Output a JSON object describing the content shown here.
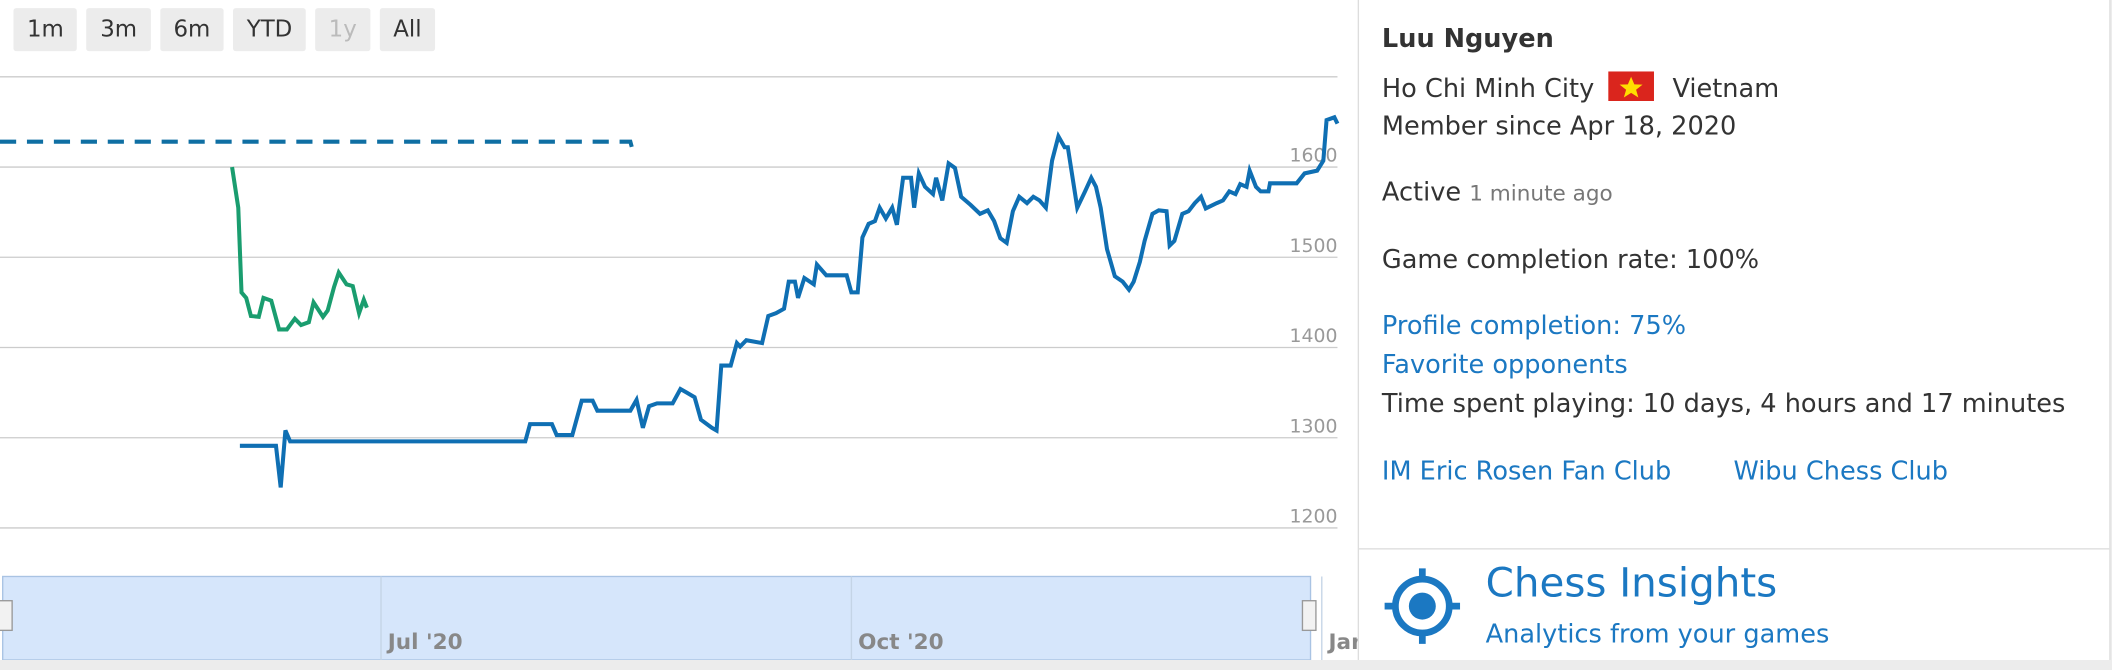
{
  "range_buttons": [
    "1m",
    "3m",
    "6m",
    "YTD",
    "1y",
    "All"
  ],
  "chart_data": {
    "type": "line",
    "xlim": [
      4.57,
      13.1
    ],
    "xticks": [
      {
        "value": 7,
        "label": "Jul '20"
      },
      {
        "value": 10,
        "label": "Oct '20"
      },
      {
        "value": 13,
        "label": "Jan"
      }
    ],
    "ylim": [
      1200,
      1700
    ],
    "yticks": [
      1200,
      1300,
      1400,
      1500,
      1600
    ],
    "grid": true,
    "series": [
      {
        "color": "#0f6fb3",
        "style": "solid",
        "x": [
          6.1,
          6.33,
          6.36,
          6.39,
          6.42,
          7.92,
          7.95,
          8.09,
          8.12,
          8.22,
          8.28,
          8.35,
          8.38,
          8.59,
          8.63,
          8.67,
          8.71,
          8.76,
          8.86,
          8.91,
          8.95,
          9.0,
          9.04,
          9.11,
          9.14,
          9.17,
          9.23,
          9.27,
          9.29,
          9.33,
          9.43,
          9.47,
          9.52,
          9.57,
          9.6,
          9.64,
          9.66,
          9.7,
          9.76,
          9.78,
          9.84,
          9.97,
          10.0,
          10.04,
          10.07,
          10.11,
          10.15,
          10.18,
          10.22,
          10.26,
          10.29,
          10.33,
          10.38,
          10.4,
          10.43,
          10.47,
          10.52,
          10.54,
          10.58,
          10.62,
          10.66,
          10.7,
          10.76,
          10.82,
          10.87,
          10.91,
          10.95,
          10.99,
          11.03,
          11.07,
          11.12,
          11.16,
          11.2,
          11.24,
          11.28,
          11.32,
          11.36,
          11.38,
          11.44,
          11.49,
          11.53,
          11.56,
          11.59,
          11.63,
          11.68,
          11.73,
          11.77,
          11.8,
          11.84,
          11.87,
          11.92,
          11.96,
          12.01,
          12.03,
          12.06,
          12.11,
          12.15,
          12.19,
          12.23,
          12.26,
          12.33,
          12.37,
          12.41,
          12.45,
          12.48,
          12.52,
          12.54,
          12.58,
          12.61,
          12.66,
          12.67,
          12.84,
          12.89,
          12.97,
          13.01,
          13.03,
          13.08,
          13.1
        ],
        "values": [
          1291,
          1291,
          1245,
          1308,
          1296,
          1296,
          1315,
          1315,
          1303,
          1303,
          1341,
          1341,
          1330,
          1330,
          1342,
          1311,
          1335,
          1338,
          1338,
          1354,
          1350,
          1345,
          1320,
          1311,
          1308,
          1380,
          1380,
          1405,
          1401,
          1408,
          1405,
          1435,
          1438,
          1443,
          1473,
          1473,
          1455,
          1477,
          1470,
          1492,
          1480,
          1480,
          1461,
          1461,
          1522,
          1537,
          1540,
          1555,
          1543,
          1555,
          1536,
          1588,
          1588,
          1555,
          1593,
          1578,
          1570,
          1588,
          1563,
          1604,
          1599,
          1567,
          1558,
          1548,
          1552,
          1540,
          1521,
          1516,
          1551,
          1567,
          1560,
          1567,
          1563,
          1555,
          1607,
          1634,
          1622,
          1622,
          1555,
          1573,
          1588,
          1578,
          1555,
          1509,
          1479,
          1473,
          1464,
          1473,
          1495,
          1518,
          1548,
          1552,
          1551,
          1513,
          1518,
          1548,
          1551,
          1560,
          1567,
          1554,
          1560,
          1563,
          1573,
          1570,
          1581,
          1578,
          1596,
          1578,
          1573,
          1573,
          1582,
          1582,
          1593,
          1596,
          1607,
          1652,
          1655,
          1648
        ]
      },
      {
        "color": "#1a9d6f",
        "style": "solid",
        "x": [
          6.05,
          6.09,
          6.11,
          6.14,
          6.17,
          6.22,
          6.25,
          6.3,
          6.35,
          6.4,
          6.45,
          6.49,
          6.54,
          6.57,
          6.63,
          6.66,
          6.7,
          6.73,
          6.78,
          6.82,
          6.86,
          6.89,
          6.91
        ],
        "values": [
          1600,
          1555,
          1461,
          1455,
          1435,
          1434,
          1455,
          1452,
          1420,
          1420,
          1432,
          1425,
          1428,
          1450,
          1434,
          1441,
          1467,
          1483,
          1470,
          1468,
          1438,
          1453,
          1444
        ]
      },
      {
        "color": "#0f6fa3",
        "style": "dashed",
        "x": [
          4.57,
          8.59,
          8.6
        ],
        "values": [
          1628,
          1628,
          1622
        ]
      }
    ]
  },
  "profile": {
    "name": "Luu Nguyen",
    "city": "Ho Chi Minh City",
    "country": "Vietnam",
    "member_since": "Member since Apr 18, 2020",
    "active": "Active",
    "active_ago": "1 minute ago",
    "completion_rate": "Game completion rate: 100%",
    "profile_completion": "Profile completion: 75%",
    "favorite_opponents": "Favorite opponents",
    "time_spent": "Time spent playing: 10 days, 4 hours and 17 minutes",
    "teams": [
      "IM Eric Rosen Fan Club",
      "Wibu Chess Club"
    ]
  },
  "insights": {
    "title": "Chess Insights",
    "subtitle": "Analytics from your games"
  }
}
